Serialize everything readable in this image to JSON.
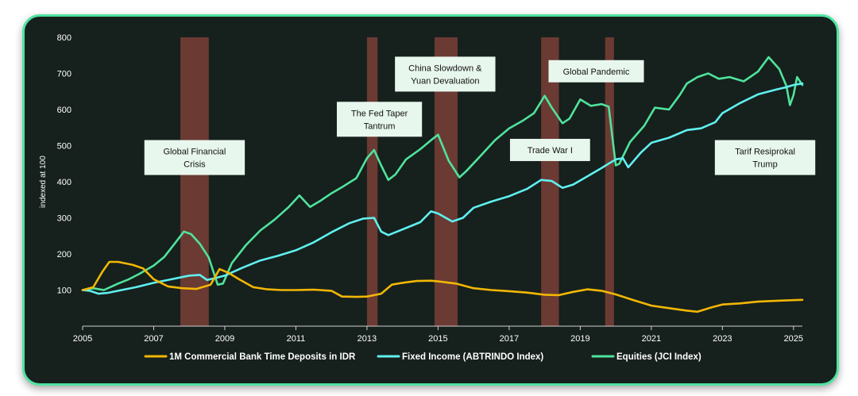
{
  "chart_data": {
    "type": "line",
    "ylabel": "indexed at 100",
    "xlabel": "",
    "ylim": [
      0,
      800
    ],
    "xlim": [
      2005,
      2025.25
    ],
    "yticks": [
      100,
      200,
      300,
      400,
      500,
      600,
      700,
      800
    ],
    "xticks": [
      2005,
      2007,
      2009,
      2011,
      2013,
      2015,
      2017,
      2019,
      2021,
      2023,
      2025
    ],
    "colors": {
      "deposits": "#f2b705",
      "fixed_income": "#5ff0ef",
      "equities": "#4fe39c",
      "shade": "#6b3a33",
      "annotation_bg": "#e8f7ee"
    },
    "shaded_periods": [
      [
        2007.75,
        2008.55
      ],
      [
        2013.0,
        2013.3
      ],
      [
        2014.9,
        2015.55
      ],
      [
        2017.9,
        2018.4
      ],
      [
        2019.7,
        2019.95
      ]
    ],
    "annotations": [
      {
        "lines": [
          "Global Financial",
          "Crisis"
        ],
        "x": 2008.15,
        "y": 467
      },
      {
        "lines": [
          "The Fed Taper",
          "Tantrum"
        ],
        "x": 2013.35,
        "y": 573
      },
      {
        "lines": [
          "China Slowdown &",
          "Yuan Devaluation"
        ],
        "x": 2015.2,
        "y": 698
      },
      {
        "lines": [
          "Trade  War I"
        ],
        "x": 2018.15,
        "y": 488
      },
      {
        "lines": [
          "Global Pandemic"
        ],
        "x": 2019.45,
        "y": 706
      },
      {
        "lines": [
          "Tarif Resiprokal",
          "Trump"
        ],
        "x": 2024.2,
        "y": 467
      }
    ],
    "series": [
      {
        "name": "1M Commercial Bank Time Deposits in IDR",
        "key": "deposits",
        "points": [
          [
            2005,
            100
          ],
          [
            2005.3,
            108
          ],
          [
            2005.55,
            150
          ],
          [
            2005.75,
            178
          ],
          [
            2006,
            178
          ],
          [
            2006.4,
            170
          ],
          [
            2006.7,
            160
          ],
          [
            2007,
            130
          ],
          [
            2007.4,
            110
          ],
          [
            2007.8,
            105
          ],
          [
            2008.2,
            103
          ],
          [
            2008.6,
            115
          ],
          [
            2008.85,
            158
          ],
          [
            2009.1,
            148
          ],
          [
            2009.4,
            130
          ],
          [
            2009.8,
            108
          ],
          [
            2010.2,
            102
          ],
          [
            2010.6,
            100
          ],
          [
            2011,
            100
          ],
          [
            2011.5,
            101
          ],
          [
            2012,
            98
          ],
          [
            2012.3,
            82
          ],
          [
            2012.7,
            81
          ],
          [
            2013,
            82
          ],
          [
            2013.4,
            90
          ],
          [
            2013.7,
            115
          ],
          [
            2014,
            120
          ],
          [
            2014.4,
            125
          ],
          [
            2014.8,
            126
          ],
          [
            2015,
            124
          ],
          [
            2015.5,
            118
          ],
          [
            2016,
            105
          ],
          [
            2016.5,
            100
          ],
          [
            2017,
            97
          ],
          [
            2017.5,
            93
          ],
          [
            2018,
            87
          ],
          [
            2018.4,
            86
          ],
          [
            2018.8,
            95
          ],
          [
            2019.2,
            102
          ],
          [
            2019.6,
            98
          ],
          [
            2020,
            88
          ],
          [
            2020.5,
            72
          ],
          [
            2021,
            57
          ],
          [
            2021.5,
            50
          ],
          [
            2022,
            43
          ],
          [
            2022.3,
            40
          ],
          [
            2022.7,
            52
          ],
          [
            2023,
            60
          ],
          [
            2023.5,
            63
          ],
          [
            2024,
            68
          ],
          [
            2024.5,
            70
          ],
          [
            2025,
            72
          ],
          [
            2025.25,
            73
          ]
        ]
      },
      {
        "name": "Fixed Income (ABTRINDO Index)",
        "key": "fixed_income",
        "points": [
          [
            2005,
            100
          ],
          [
            2005.2,
            98
          ],
          [
            2005.45,
            90
          ],
          [
            2005.7,
            92
          ],
          [
            2006,
            98
          ],
          [
            2006.5,
            108
          ],
          [
            2007,
            120
          ],
          [
            2007.5,
            130
          ],
          [
            2008,
            140
          ],
          [
            2008.3,
            142
          ],
          [
            2008.5,
            128
          ],
          [
            2008.8,
            135
          ],
          [
            2009,
            140
          ],
          [
            2009.5,
            162
          ],
          [
            2010,
            182
          ],
          [
            2010.5,
            195
          ],
          [
            2011,
            210
          ],
          [
            2011.5,
            232
          ],
          [
            2012,
            260
          ],
          [
            2012.5,
            285
          ],
          [
            2012.9,
            298
          ],
          [
            2013.2,
            300
          ],
          [
            2013.4,
            262
          ],
          [
            2013.6,
            252
          ],
          [
            2014,
            268
          ],
          [
            2014.5,
            288
          ],
          [
            2014.8,
            318
          ],
          [
            2015,
            312
          ],
          [
            2015.4,
            290
          ],
          [
            2015.7,
            300
          ],
          [
            2016,
            328
          ],
          [
            2016.5,
            345
          ],
          [
            2017,
            360
          ],
          [
            2017.5,
            380
          ],
          [
            2017.9,
            405
          ],
          [
            2018.2,
            402
          ],
          [
            2018.5,
            383
          ],
          [
            2018.8,
            392
          ],
          [
            2019.2,
            415
          ],
          [
            2019.6,
            438
          ],
          [
            2020,
            462
          ],
          [
            2020.2,
            465
          ],
          [
            2020.35,
            440
          ],
          [
            2020.7,
            480
          ],
          [
            2021,
            508
          ],
          [
            2021.5,
            522
          ],
          [
            2022,
            543
          ],
          [
            2022.4,
            548
          ],
          [
            2022.8,
            565
          ],
          [
            2023,
            590
          ],
          [
            2023.5,
            618
          ],
          [
            2024,
            642
          ],
          [
            2024.5,
            655
          ],
          [
            2024.8,
            662
          ],
          [
            2025,
            668
          ],
          [
            2025.25,
            672
          ]
        ]
      },
      {
        "name": "Equities (JCI Index)",
        "key": "equities",
        "points": [
          [
            2005,
            100
          ],
          [
            2005.3,
            105
          ],
          [
            2005.6,
            100
          ],
          [
            2006,
            118
          ],
          [
            2006.3,
            130
          ],
          [
            2006.6,
            145
          ],
          [
            2007,
            168
          ],
          [
            2007.3,
            192
          ],
          [
            2007.6,
            230
          ],
          [
            2007.85,
            262
          ],
          [
            2008.05,
            255
          ],
          [
            2008.3,
            228
          ],
          [
            2008.55,
            190
          ],
          [
            2008.8,
            115
          ],
          [
            2008.95,
            118
          ],
          [
            2009.2,
            175
          ],
          [
            2009.6,
            225
          ],
          [
            2010,
            265
          ],
          [
            2010.4,
            295
          ],
          [
            2010.8,
            330
          ],
          [
            2011.1,
            362
          ],
          [
            2011.4,
            330
          ],
          [
            2011.7,
            348
          ],
          [
            2012,
            368
          ],
          [
            2012.3,
            385
          ],
          [
            2012.7,
            410
          ],
          [
            2013,
            465
          ],
          [
            2013.2,
            488
          ],
          [
            2013.4,
            445
          ],
          [
            2013.6,
            405
          ],
          [
            2013.8,
            420
          ],
          [
            2014.1,
            462
          ],
          [
            2014.5,
            490
          ],
          [
            2014.8,
            515
          ],
          [
            2015,
            530
          ],
          [
            2015.3,
            458
          ],
          [
            2015.6,
            412
          ],
          [
            2015.8,
            430
          ],
          [
            2016.2,
            472
          ],
          [
            2016.6,
            515
          ],
          [
            2017,
            548
          ],
          [
            2017.4,
            570
          ],
          [
            2017.7,
            590
          ],
          [
            2018,
            638
          ],
          [
            2018.2,
            605
          ],
          [
            2018.5,
            562
          ],
          [
            2018.7,
            575
          ],
          [
            2019,
            628
          ],
          [
            2019.3,
            610
          ],
          [
            2019.6,
            615
          ],
          [
            2019.8,
            608
          ],
          [
            2020,
            445
          ],
          [
            2020.1,
            450
          ],
          [
            2020.4,
            510
          ],
          [
            2020.8,
            555
          ],
          [
            2021.1,
            605
          ],
          [
            2021.5,
            600
          ],
          [
            2021.8,
            640
          ],
          [
            2022,
            672
          ],
          [
            2022.3,
            690
          ],
          [
            2022.6,
            700
          ],
          [
            2022.9,
            685
          ],
          [
            2023.2,
            690
          ],
          [
            2023.6,
            678
          ],
          [
            2024,
            705
          ],
          [
            2024.3,
            745
          ],
          [
            2024.6,
            712
          ],
          [
            2024.8,
            665
          ],
          [
            2024.9,
            612
          ],
          [
            2025,
            640
          ],
          [
            2025.1,
            690
          ],
          [
            2025.25,
            668
          ]
        ]
      }
    ]
  }
}
